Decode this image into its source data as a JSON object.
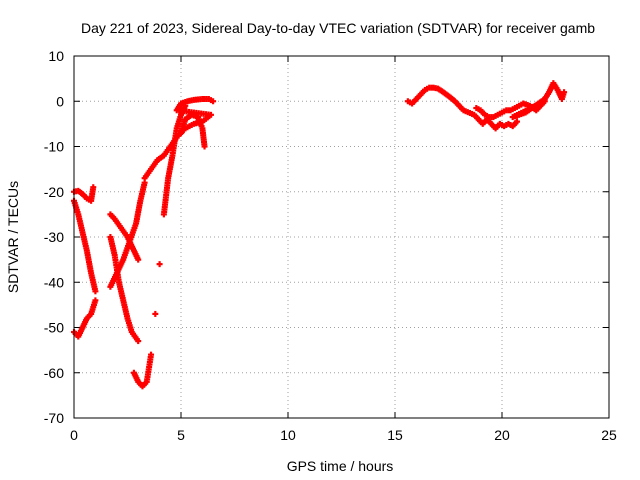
{
  "chart_data": {
    "type": "scatter",
    "title": "Day 221 of 2023, Sidereal Day-to-day VTEC variation (SDTVAR) for receiver gamb",
    "xlabel": "GPS time / hours",
    "ylabel": "SDTVAR / TECUs",
    "xlim": [
      0,
      25
    ],
    "ylim": [
      -70,
      10
    ],
    "xticks": [
      0,
      5,
      10,
      15,
      20,
      25
    ],
    "yticks": [
      10,
      0,
      -10,
      -20,
      -30,
      -40,
      -50,
      -60,
      -70
    ],
    "xtick_labels": [
      "0",
      "5",
      "10",
      "15",
      "20",
      "25"
    ],
    "ytick_labels": [
      "10",
      "0",
      "-10",
      "-20",
      "-30",
      "-40",
      "-50",
      "-60",
      "-70"
    ],
    "grid": true,
    "legend": "none",
    "marker": "plus",
    "color": "#ff0000",
    "series": [
      {
        "points": [
          [
            0.0,
            -22
          ],
          [
            0.2,
            -25
          ],
          [
            0.4,
            -29
          ],
          [
            0.6,
            -33
          ],
          [
            0.8,
            -38
          ],
          [
            1.0,
            -42
          ],
          [
            0.0,
            -20
          ],
          [
            0.2,
            -19.8
          ],
          [
            0.4,
            -20.5
          ],
          [
            0.6,
            -21.5
          ],
          [
            0.8,
            -22
          ],
          [
            0.9,
            -19
          ],
          [
            0.0,
            -51
          ],
          [
            0.2,
            -52
          ],
          [
            0.4,
            -50
          ],
          [
            0.6,
            -48
          ],
          [
            0.8,
            -47
          ],
          [
            1.0,
            -44
          ],
          [
            1.7,
            -30
          ],
          [
            1.9,
            -34
          ],
          [
            2.1,
            -40
          ],
          [
            2.3,
            -44
          ],
          [
            2.5,
            -48
          ],
          [
            2.7,
            -51
          ],
          [
            3.0,
            -53
          ],
          [
            1.7,
            -41
          ],
          [
            2.0,
            -38
          ],
          [
            2.3,
            -35
          ],
          [
            2.6,
            -31
          ],
          [
            2.9,
            -27
          ],
          [
            3.1,
            -22
          ],
          [
            3.3,
            -18
          ],
          [
            1.7,
            -25
          ],
          [
            1.9,
            -26
          ],
          [
            2.2,
            -28
          ],
          [
            2.5,
            -30
          ],
          [
            2.8,
            -33
          ],
          [
            3.0,
            -35
          ],
          [
            2.8,
            -60
          ],
          [
            3.0,
            -62
          ],
          [
            3.2,
            -63
          ],
          [
            3.4,
            -62
          ],
          [
            3.6,
            -56
          ],
          [
            3.8,
            -47
          ],
          [
            4.0,
            -36
          ],
          [
            4.2,
            -25
          ],
          [
            4.4,
            -17
          ],
          [
            4.6,
            -12
          ],
          [
            4.8,
            -6
          ],
          [
            5.0,
            -3
          ],
          [
            5.2,
            -1
          ],
          [
            3.3,
            -17
          ],
          [
            3.6,
            -15
          ],
          [
            3.9,
            -13
          ],
          [
            4.2,
            -12
          ],
          [
            4.5,
            -10
          ],
          [
            4.8,
            -8
          ],
          [
            5.2,
            -6
          ],
          [
            5.6,
            -5
          ],
          [
            6.0,
            -4.5
          ],
          [
            6.4,
            -3
          ],
          [
            4.8,
            -2
          ],
          [
            5.0,
            -0.5
          ],
          [
            5.3,
            0
          ],
          [
            5.6,
            0.3
          ],
          [
            6.0,
            0.5
          ],
          [
            6.3,
            0.5
          ],
          [
            6.5,
            0
          ],
          [
            5.0,
            -7
          ],
          [
            5.2,
            -4
          ],
          [
            5.5,
            -3
          ],
          [
            5.8,
            -3.5
          ],
          [
            6.0,
            -6
          ],
          [
            6.1,
            -10
          ],
          [
            15.6,
            0
          ],
          [
            15.8,
            -0.5
          ],
          [
            16.0,
            0.5
          ],
          [
            16.2,
            1.5
          ],
          [
            16.4,
            2.5
          ],
          [
            16.6,
            3
          ],
          [
            16.8,
            3
          ],
          [
            17.0,
            2.8
          ],
          [
            17.2,
            2.2
          ],
          [
            17.4,
            1.5
          ],
          [
            17.6,
            0.8
          ],
          [
            17.8,
            0
          ],
          [
            18.0,
            -1
          ],
          [
            18.2,
            -2
          ],
          [
            18.7,
            -3
          ],
          [
            18.9,
            -4
          ],
          [
            19.1,
            -5
          ],
          [
            19.3,
            -4
          ],
          [
            19.5,
            -5
          ],
          [
            19.7,
            -6
          ],
          [
            19.9,
            -5
          ],
          [
            20.1,
            -5.5
          ],
          [
            20.3,
            -5
          ],
          [
            20.5,
            -5.5
          ],
          [
            20.7,
            -4.5
          ],
          [
            18.8,
            -1.5
          ],
          [
            19.0,
            -2
          ],
          [
            19.2,
            -3
          ],
          [
            19.4,
            -3.5
          ],
          [
            19.6,
            -3.5
          ],
          [
            19.8,
            -3
          ],
          [
            20.0,
            -2.5
          ],
          [
            20.2,
            -2
          ],
          [
            20.4,
            -2
          ],
          [
            20.6,
            -1.5
          ],
          [
            20.8,
            -1
          ],
          [
            21.0,
            -0.5
          ],
          [
            21.3,
            -1
          ],
          [
            21.6,
            -2
          ],
          [
            21.8,
            -1
          ],
          [
            22.0,
            0
          ],
          [
            20.5,
            -3.5
          ],
          [
            20.8,
            -3
          ],
          [
            21.1,
            -2.5
          ],
          [
            21.4,
            -1.5
          ],
          [
            21.7,
            -0.5
          ],
          [
            22.0,
            0.5
          ],
          [
            22.2,
            2
          ],
          [
            22.4,
            4
          ],
          [
            22.6,
            2.5
          ],
          [
            22.8,
            0.5
          ],
          [
            22.9,
            2
          ]
        ]
      }
    ]
  }
}
